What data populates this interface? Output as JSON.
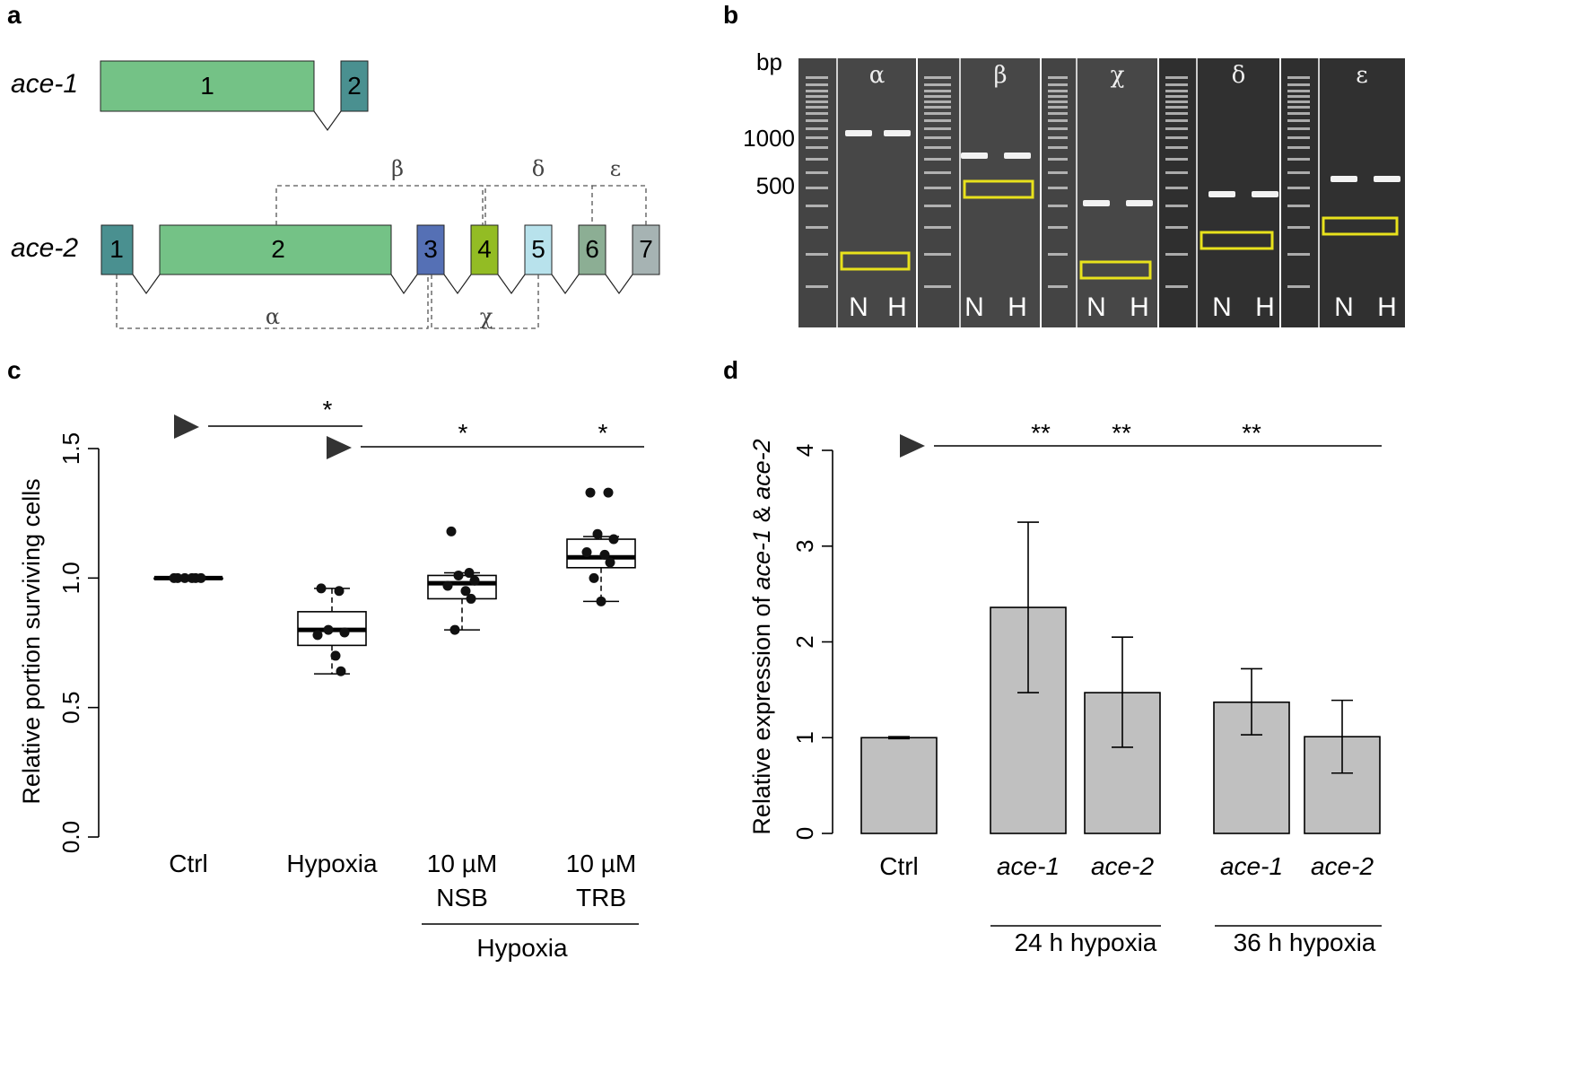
{
  "panels": {
    "a": "a",
    "b": "b",
    "c": "c",
    "d": "d"
  },
  "panel_a": {
    "ace1": {
      "label": "ace-1",
      "exons": [
        {
          "label": "1",
          "color": "#74c286"
        },
        {
          "label": "2",
          "color": "#4a9090"
        }
      ]
    },
    "ace2": {
      "label": "ace-2",
      "exons": [
        {
          "label": "1",
          "color": "#4a9090"
        },
        {
          "label": "2",
          "color": "#74c286"
        },
        {
          "label": "3",
          "color": "#5570b5"
        },
        {
          "label": "4",
          "color": "#93bc24"
        },
        {
          "label": "5",
          "color": "#b8e2ec"
        },
        {
          "label": "6",
          "color": "#8cae94"
        },
        {
          "label": "7",
          "color": "#a6b3b3"
        }
      ]
    },
    "primers": [
      "α",
      "β",
      "χ",
      "δ",
      "ε"
    ]
  },
  "panel_b": {
    "bp_label": "bp",
    "markers": [
      "1000",
      "500"
    ],
    "gels": [
      "α",
      "β",
      "χ",
      "δ",
      "ε"
    ],
    "lanes": [
      "N",
      "H"
    ],
    "highlight_color": "#e8e21c"
  },
  "chart_data": [
    {
      "id": "c",
      "type": "box",
      "ylabel": "Relative portion surviving cells",
      "ylim": [
        0,
        1.5
      ],
      "yticks": [
        "0.0",
        "0.5",
        "1.0",
        "1.5"
      ],
      "categories": [
        "Ctrl",
        "Hypoxia",
        "10 µM NSB",
        "10 µM TRB"
      ],
      "category_lines": [
        [
          "Ctrl"
        ],
        [
          "Hypoxia"
        ],
        [
          "10 µM",
          "NSB"
        ],
        [
          "10 µM",
          "TRB"
        ]
      ],
      "group_label": "Hypoxia",
      "boxes": [
        {
          "q1": 1.0,
          "median": 1.0,
          "q3": 1.0,
          "whisker_low": 1.0,
          "whisker_high": 1.0,
          "points": [
            1.0,
            1.0,
            1.0,
            1.0,
            1.0,
            1.0
          ]
        },
        {
          "q1": 0.74,
          "median": 0.8,
          "q3": 0.87,
          "whisker_low": 0.63,
          "whisker_high": 0.96,
          "points": [
            0.96,
            0.95,
            0.8,
            0.79,
            0.78,
            0.7,
            0.64
          ]
        },
        {
          "q1": 0.92,
          "median": 0.98,
          "q3": 1.01,
          "whisker_low": 0.8,
          "whisker_high": 1.02,
          "points": [
            1.18,
            1.02,
            1.01,
            0.99,
            0.97,
            0.95,
            0.92,
            0.8
          ]
        },
        {
          "q1": 1.04,
          "median": 1.08,
          "q3": 1.15,
          "whisker_low": 0.91,
          "whisker_high": 1.16,
          "points": [
            1.33,
            1.33,
            1.17,
            1.15,
            1.1,
            1.09,
            1.06,
            1.0,
            0.91
          ]
        }
      ],
      "significance": [
        {
          "label": "*",
          "reference": "Ctrl"
        },
        {
          "label": "*",
          "reference": "Hypoxia"
        },
        {
          "label": "*",
          "reference": "Hypoxia"
        }
      ]
    },
    {
      "id": "d",
      "type": "bar",
      "ylabel_parts": [
        "Relative expression of ",
        "ace-1",
        " & ",
        "ace-2"
      ],
      "ylim": [
        0,
        4
      ],
      "yticks": [
        "0",
        "1",
        "2",
        "3",
        "4"
      ],
      "categories": [
        "Ctrl",
        "ace-1",
        "ace-2",
        "ace-1",
        "ace-2"
      ],
      "values": [
        1.0,
        2.36,
        1.47,
        1.37,
        1.01
      ],
      "error_low": [
        0.99,
        1.47,
        0.9,
        1.03,
        0.63
      ],
      "error_high": [
        1.01,
        3.25,
        2.05,
        1.72,
        1.39
      ],
      "group_labels": [
        "24 h hypoxia",
        "36 h hypoxia"
      ],
      "significance": [
        "**",
        "**",
        "**"
      ],
      "bar_color": "#c0c0c0"
    }
  ]
}
